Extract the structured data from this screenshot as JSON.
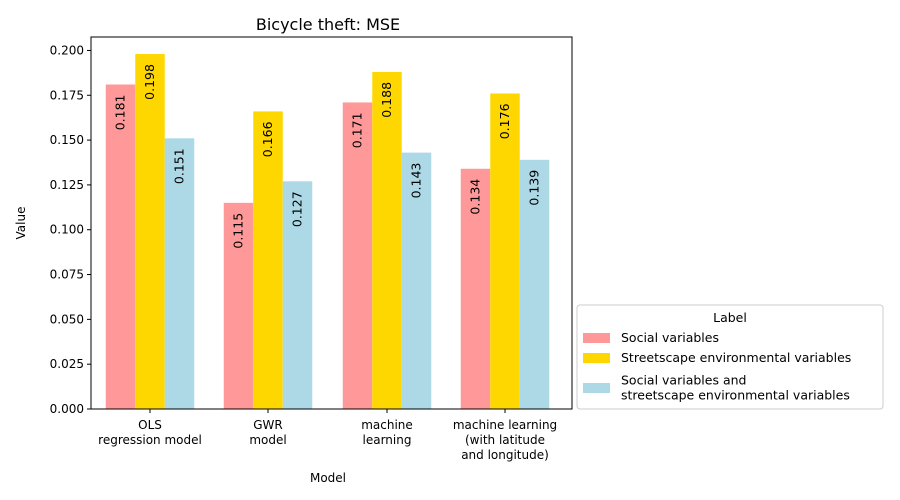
{
  "chart_data": {
    "type": "bar",
    "title": "Bicycle theft: MSE",
    "xlabel": "Model",
    "ylabel": "Value",
    "categories": [
      [
        "OLS",
        "regression model"
      ],
      [
        "GWR",
        "model"
      ],
      [
        "machine",
        "learning"
      ],
      [
        "machine learning",
        "(with latitude",
        "and longitude)"
      ]
    ],
    "ylim": [
      0,
      0.2075
    ],
    "yticks": [
      "0.000",
      "0.025",
      "0.050",
      "0.075",
      "0.100",
      "0.125",
      "0.150",
      "0.175",
      "0.200"
    ],
    "series": [
      {
        "name": "Social variables",
        "color": "#ff9999",
        "values": [
          0.181,
          0.115,
          0.171,
          0.134
        ],
        "labels": [
          "0.181",
          "0.115",
          "0.171",
          "0.134"
        ]
      },
      {
        "name": "Streetscape environmental variables",
        "color": "#ffd700",
        "values": [
          0.198,
          0.166,
          0.188,
          0.176
        ],
        "labels": [
          "0.198",
          "0.166",
          "0.188",
          "0.176"
        ]
      },
      {
        "name": "Social variables and\nstreetscape environmental variables",
        "color": "#add8e6",
        "values": [
          0.151,
          0.127,
          0.143,
          0.139
        ],
        "labels": [
          "0.151",
          "0.127",
          "0.143",
          "0.139"
        ]
      }
    ],
    "legend": {
      "title": "Label",
      "placement": "right"
    },
    "grid": false
  }
}
